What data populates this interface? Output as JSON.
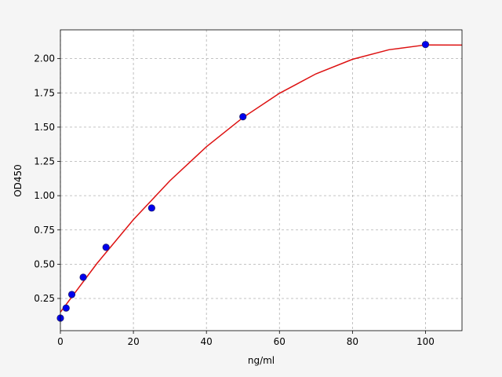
{
  "chart_data": {
    "type": "scatter",
    "xlabel": "ng/ml",
    "ylabel": "OD450",
    "xlim": [
      0,
      110
    ],
    "ylim": [
      0.015,
      2.21
    ],
    "xticks": [
      0,
      20,
      40,
      60,
      80,
      100
    ],
    "yticks": [
      0.25,
      {
        "value": 0.5,
        "label": "0.50"
      },
      0.75,
      {
        "value": 1,
        "label": "1.00"
      },
      1.25,
      {
        "value": 1.5,
        "label": "1.50"
      },
      1.75,
      {
        "value": 2,
        "label": "2.00"
      }
    ],
    "grid": true,
    "series": [
      {
        "type": "line",
        "color": "#dd1111",
        "x": [
          0,
          10,
          20,
          30,
          40,
          50,
          60,
          70,
          80,
          90,
          100,
          110
        ],
        "values": [
          0.15,
          0.505,
          0.825,
          1.109,
          1.357,
          1.57,
          1.747,
          1.889,
          1.995,
          2.065,
          2.1,
          2.099
        ]
      },
      {
        "type": "scatter",
        "color": "#0000ee",
        "x": [
          0,
          1.5625,
          3.125,
          6.25,
          12.5,
          25,
          50,
          100
        ],
        "values": [
          0.107,
          0.18,
          0.279,
          0.405,
          0.623,
          0.91,
          1.576,
          2.103
        ]
      }
    ]
  }
}
